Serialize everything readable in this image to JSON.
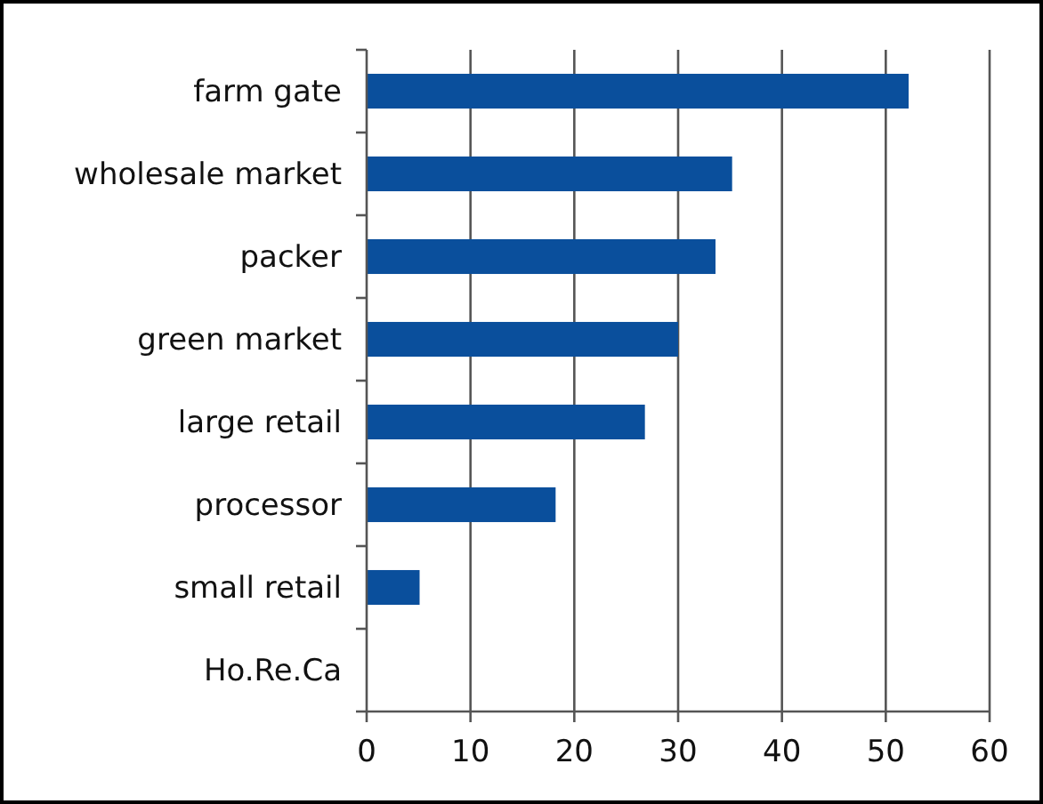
{
  "chart_data": {
    "type": "bar",
    "orientation": "horizontal",
    "categories": [
      "farm gate",
      "wholesale market",
      "packer",
      "green market",
      "large retail",
      "processor",
      "small retail",
      "Ho.Re.Ca"
    ],
    "values": [
      52.2,
      35.2,
      33.6,
      30.0,
      26.8,
      18.2,
      5.1,
      0
    ],
    "color": "#0a4f9c",
    "xlim": [
      0,
      60
    ],
    "xticks": [
      0,
      10,
      20,
      30,
      40,
      50,
      60
    ],
    "grid": "x"
  }
}
